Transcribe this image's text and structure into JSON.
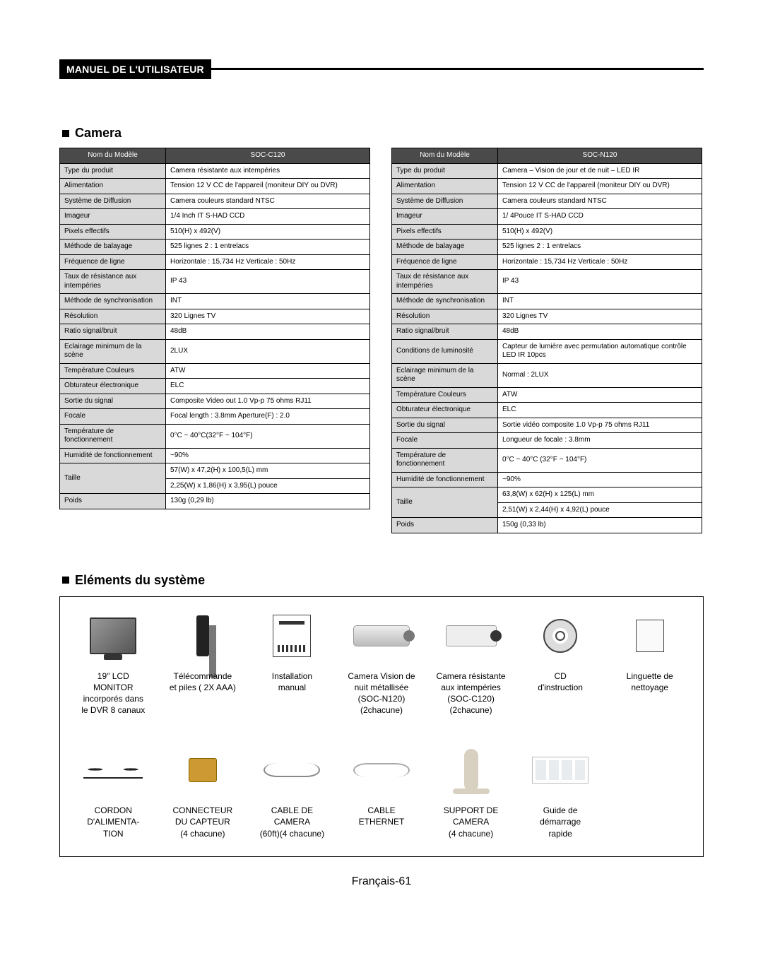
{
  "header": {
    "label": "MANUEL DE L'UTILISATEUR"
  },
  "camera_section_title": "Camera",
  "elements_section_title": "Eléments du système",
  "footer": "Français-61",
  "table1": {
    "header_left": "Nom du Modèle",
    "header_right": "SOC-C120",
    "label_col_width": 150,
    "colors": {
      "header_bg": "#4a4a4a",
      "header_fg": "#ffffff",
      "label_bg": "#d9d9d9",
      "border": "#000000"
    },
    "rows": [
      [
        "Type du produit",
        "Camera résistante aux intempéries"
      ],
      [
        "Alimentation",
        "Tension 12 V CC de l'appareil (moniteur DIY ou DVR)"
      ],
      [
        "Système de Diffusion",
        "Camera couleurs standard NTSC"
      ],
      [
        "Imageur",
        "1/4 Inch IT S-HAD CCD"
      ],
      [
        "Pixels effectifs",
        "510(H) x 492(V)"
      ],
      [
        "Méthode de balayage",
        "525 lignes 2 : 1 entrelacs"
      ],
      [
        "Fréquence de ligne",
        "Horizontale  : 15,734 Hz Verticale : 50Hz"
      ],
      [
        "Taux de résistance aux intempéries",
        "IP 43"
      ],
      [
        "Méthode de synchronisation",
        "INT"
      ],
      [
        "Résolution",
        "320 Lignes TV"
      ],
      [
        "Ratio signal/bruit",
        "48dB"
      ],
      [
        "Eclairage minimum de la scène",
        "2LUX"
      ],
      [
        "Température Couleurs",
        "ATW"
      ],
      [
        "Obturateur électronique",
        "ELC"
      ],
      [
        "Sortie du signal",
        "Composite Video out 1.0 Vp-p 75 ohms RJ11"
      ],
      [
        "Focale",
        "Focal length : 3.8mm     Aperture(F) : 2.0"
      ],
      [
        "Température de fonctionnement",
        "0°C ~ 40°C(32°F ~ 104°F)"
      ],
      [
        "Humidité de fonctionnement",
        "~90%"
      ]
    ],
    "taille_label": "Taille",
    "taille_values": [
      "57(W) x 47,2(H) x 100,5(L) mm",
      "2,25(W) x 1,86(H) x 3,95(L) pouce"
    ],
    "last": [
      "Poids",
      "130g (0,29 lb)"
    ]
  },
  "table2": {
    "header_left": "Nom du Modèle",
    "header_right": "SOC-N120",
    "label_col_width": 150,
    "colors": {
      "header_bg": "#4a4a4a",
      "header_fg": "#ffffff",
      "label_bg": "#d9d9d9",
      "border": "#000000"
    },
    "rows": [
      [
        "Type du produit",
        "Camera – Vision de jour et de nuit – LED IR"
      ],
      [
        "Alimentation",
        "Tension 12 V CC de l'appareil (moniteur DIY ou DVR)"
      ],
      [
        "Système de Diffusion",
        "Camera couleurs standard NTSC"
      ],
      [
        "Imageur",
        "1/ 4Pouce IT S-HAD CCD"
      ],
      [
        "Pixels effectifs",
        "510(H) x 492(V)"
      ],
      [
        "Méthode de balayage",
        "525 lignes 2 : 1 entrelacs"
      ],
      [
        "Fréquence de ligne",
        "Horizontale  : 15,734 Hz Verticale : 50Hz"
      ],
      [
        "Taux de résistance aux intempéries",
        "IP 43"
      ],
      [
        "Méthode de synchronisation",
        "INT"
      ],
      [
        "Résolution",
        "320 Lignes TV"
      ],
      [
        "Ratio signal/bruit",
        "48dB"
      ],
      [
        "Conditions de luminosité",
        "Capteur de lumière avec permutation automatique contrôle LED IR 10pcs"
      ],
      [
        "Eclairage minimum de la scène",
        "Normal : 2LUX"
      ],
      [
        "Température Couleurs",
        "ATW"
      ],
      [
        "Obturateur électronique",
        "ELC"
      ],
      [
        "Sortie du signal",
        "Sortie vidéo composite 1.0 Vp-p 75 ohms RJ11"
      ],
      [
        "Focale",
        "Longueur de focale : 3.8mm"
      ],
      [
        "Température de fonctionnement",
        "0°C ~ 40°C (32°F ~ 104°F)"
      ],
      [
        "Humidité de fonctionnement",
        "~90%"
      ]
    ],
    "taille_label": "Taille",
    "taille_values": [
      "63,8(W) x 62(H) x 125(L) mm",
      "2,51(W) x 2,44(H) x 4,92(L) pouce"
    ],
    "last": [
      "Poids",
      "150g (0,33 lb)"
    ]
  },
  "items_row1": [
    {
      "icon": "ic-monitor",
      "label": "19\" LCD\nMONITOR\nincorporés dans\nle DVR 8 canaux"
    },
    {
      "icon": "ic-remote",
      "label": "Télécommande\net piles ( 2X AAA)"
    },
    {
      "icon": "ic-manual",
      "label": "Installation\nmanual"
    },
    {
      "icon": "ic-cam",
      "label": "Camera Vision de\nnuit métallisée\n(SOC-N120)\n(2chacune)"
    },
    {
      "icon": "ic-cam2",
      "label": "Camera résistante\naux intempéries\n(SOC-C120)\n(2chacune)"
    },
    {
      "icon": "ic-cd",
      "label": "CD\nd'instruction"
    },
    {
      "icon": "ic-tab",
      "label": "Linguette de\nnettoyage"
    }
  ],
  "items_row2": [
    {
      "icon": "ic-cord",
      "label": "CORDON\nD'ALIMENTA-\nTION"
    },
    {
      "icon": "ic-conn",
      "label": "CONNECTEUR\nDU CAPTEUR\n(4 chacune)"
    },
    {
      "icon": "ic-cable",
      "label": "CABLE DE\nCAMERA\n(60ft)(4 chacune)"
    },
    {
      "icon": "ic-eth",
      "label": "CABLE\nETHERNET"
    },
    {
      "icon": "ic-mount",
      "label": "SUPPORT DE\nCAMERA\n(4 chacune)"
    },
    {
      "icon": "ic-guide",
      "label": "Guide de\ndémarrage\nrapide"
    },
    {
      "icon": "",
      "label": ""
    }
  ]
}
